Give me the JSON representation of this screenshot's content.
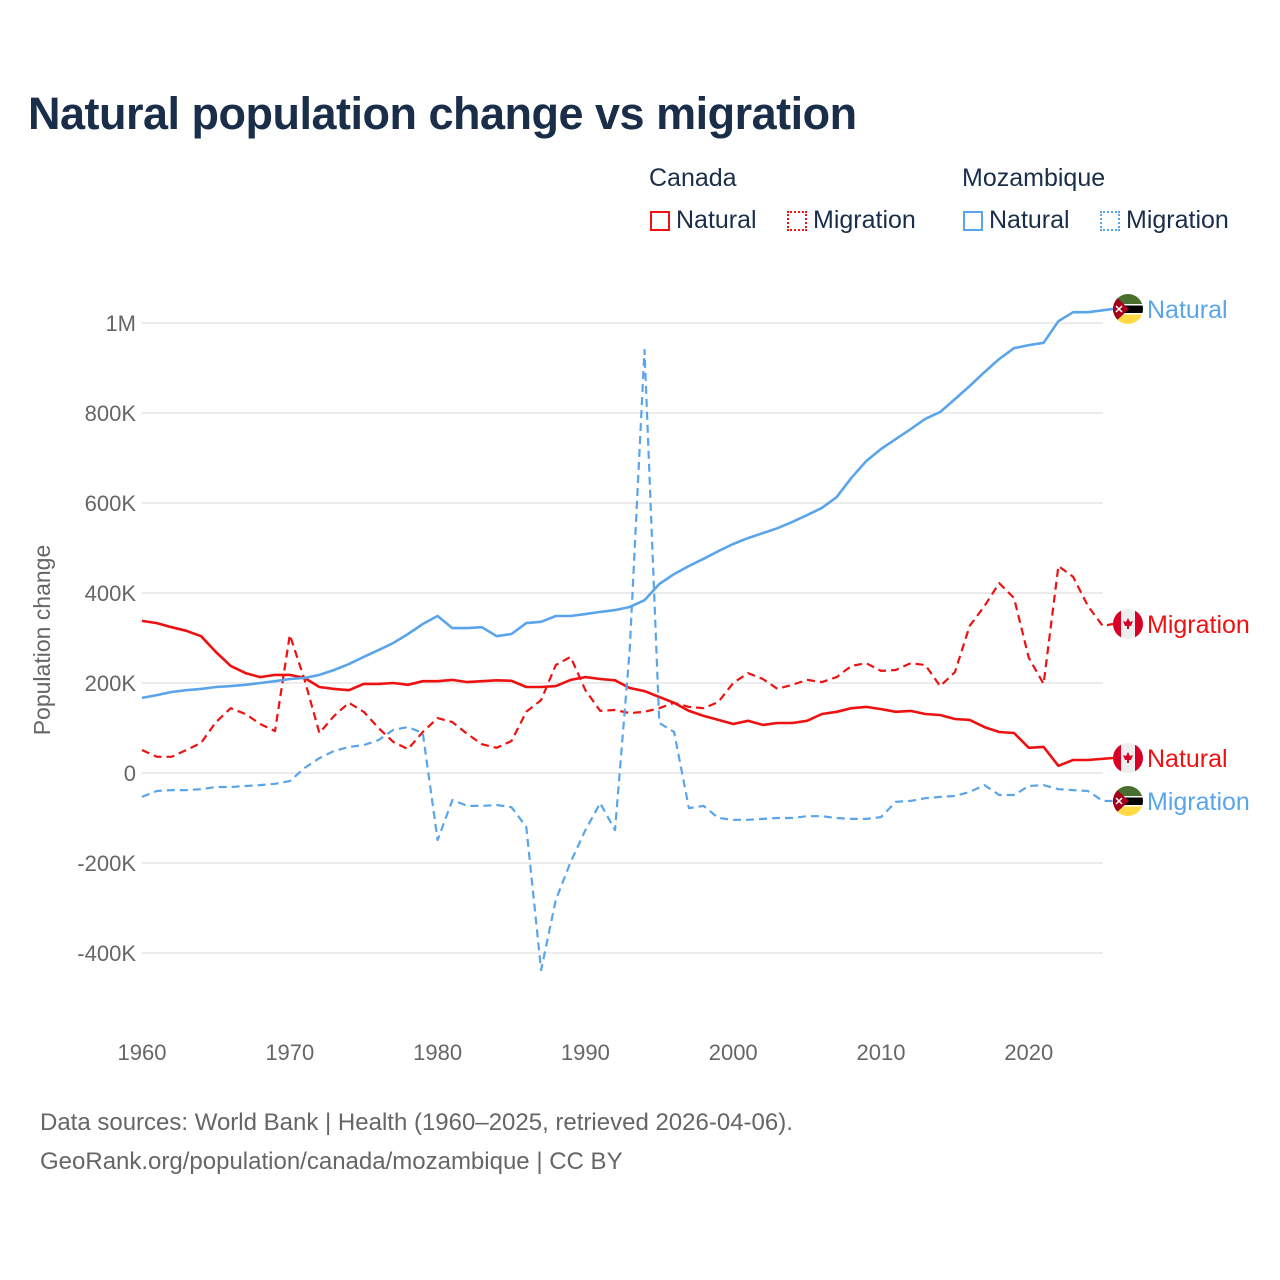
{
  "colors": {
    "canada": "#ee1111",
    "mozambique": "#5aa5ea",
    "grid": "#e6e6e6",
    "title": "#1a2e4a"
  },
  "chart_data": {
    "type": "line",
    "title": "Natural population change vs migration",
    "xlabel": "",
    "ylabel": "Population change",
    "xlim": [
      1960,
      2025
    ],
    "ylim": [
      -500000,
      1100000
    ],
    "x_ticks": [
      1960,
      1970,
      1980,
      1990,
      2000,
      2010,
      2020
    ],
    "x_tick_labels": [
      "1960",
      "1970",
      "1980",
      "1990",
      "2000",
      "2010",
      "2020"
    ],
    "y_ticks": [
      -400000,
      -200000,
      0,
      200000,
      400000,
      600000,
      800000,
      1000000
    ],
    "y_tick_labels": [
      "-400K",
      "-200K",
      "0",
      "200K",
      "400K",
      "600K",
      "800K",
      "1M"
    ],
    "grid": true,
    "legend": {
      "placement": "top-right",
      "groups": [
        {
          "name": "Canada",
          "items": [
            "Natural",
            "Migration"
          ]
        },
        {
          "name": "Mozambique",
          "items": [
            "Natural",
            "Migration"
          ]
        }
      ]
    },
    "start_year": 1960,
    "series": [
      {
        "country": "Canada",
        "name": "Natural",
        "label": "Natural",
        "color": "#ee1111",
        "dash": false,
        "values": [
          338,
          333,
          324,
          316,
          304,
          269,
          238,
          222,
          213,
          218,
          218,
          211,
          191,
          187,
          184,
          198,
          198,
          200,
          196,
          204,
          204,
          207,
          202,
          204,
          206,
          205,
          191,
          191,
          193,
          207,
          213,
          209,
          206,
          189,
          182,
          169,
          156,
          138,
          127,
          118,
          109,
          116,
          107,
          111,
          111,
          116,
          131,
          136,
          144,
          147,
          142,
          136,
          138,
          131,
          129,
          120,
          118,
          102,
          91,
          89,
          56,
          58,
          16,
          29,
          29
        ]
      },
      {
        "country": "Canada",
        "name": "Migration",
        "label": "Migration",
        "color": "#ee1111",
        "dash": true,
        "values": [
          51,
          36,
          36,
          51,
          67,
          113,
          144,
          131,
          109,
          93,
          307,
          207,
          89,
          127,
          156,
          136,
          100,
          69,
          53,
          91,
          122,
          113,
          87,
          64,
          56,
          71,
          136,
          162,
          240,
          258,
          184,
          138,
          140,
          133,
          136,
          144,
          156,
          147,
          144,
          158,
          200,
          222,
          209,
          187,
          196,
          207,
          202,
          213,
          238,
          244,
          227,
          229,
          244,
          240,
          193,
          224,
          327,
          371,
          422,
          389,
          256,
          198,
          460,
          436,
          371,
          327
        ]
      },
      {
        "country": "Mozambique",
        "name": "Natural",
        "label": "Natural",
        "color": "#5aa5ea",
        "dash": false,
        "values": [
          167,
          173,
          180,
          184,
          187,
          191,
          193,
          196,
          200,
          204,
          209,
          211,
          218,
          229,
          242,
          258,
          273,
          289,
          309,
          331,
          349,
          322,
          322,
          324,
          304,
          309,
          333,
          336,
          349,
          349,
          353,
          358,
          362,
          369,
          384,
          420,
          442,
          460,
          476,
          493,
          509,
          522,
          533,
          544,
          558,
          573,
          589,
          613,
          656,
          693,
          720,
          742,
          764,
          787,
          802,
          831,
          860,
          891,
          920,
          944,
          951,
          956,
          1004,
          1024,
          1024
        ]
      },
      {
        "country": "Mozambique",
        "name": "Migration",
        "label": "Migration",
        "color": "#5aa5ea",
        "dash": true,
        "values": [
          -53,
          -40,
          -38,
          -38,
          -36,
          -31,
          -31,
          -29,
          -27,
          -24,
          -18,
          11,
          33,
          49,
          58,
          62,
          73,
          96,
          102,
          89,
          -149,
          -60,
          -73,
          -73,
          -71,
          -76,
          -120,
          -438,
          -282,
          -198,
          -127,
          -67,
          -127,
          273,
          940,
          111,
          91,
          -78,
          -73,
          -100,
          -104,
          -104,
          -102,
          -100,
          -100,
          -96,
          -96,
          -100,
          -102,
          -102,
          -98,
          -64,
          -62,
          -56,
          -53,
          -51,
          -42,
          -27,
          -49,
          -49,
          -29,
          -27,
          -36,
          -38,
          -40,
          -62
        ]
      }
    ],
    "values_unit": "thousands"
  },
  "footer": {
    "line1": "Data sources: World Bank | Health (1960–2025, retrieved 2026-04-06).",
    "line2": "GeoRank.org/population/canada/mozambique | CC BY"
  }
}
